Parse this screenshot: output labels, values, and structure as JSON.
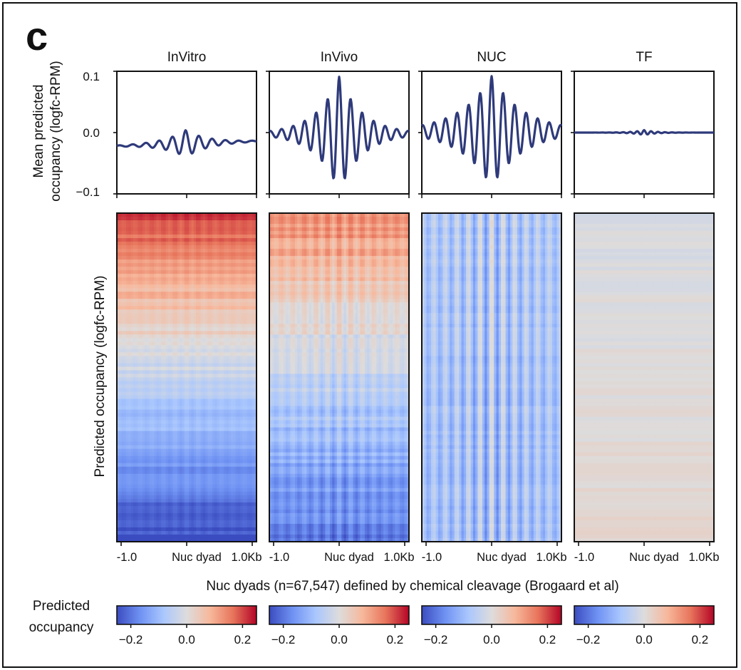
{
  "panel_letter": "c",
  "colors": {
    "line": "#2e3a7a",
    "cmap": [
      "#3b4cc0",
      "#6f92f3",
      "#aac7fd",
      "#dddcdc",
      "#f7b89c",
      "#e7745b",
      "#b40426"
    ]
  },
  "labels": {
    "profile_ylabel_1": "Mean predicted",
    "profile_ylabel_2": "occupancy (logfc-RPM)",
    "heatmap_ylabel": "Predicted occupancy (logfc-RPM)",
    "shared_xlabel": "Nuc dyads (n=67,547) defined by chemical cleavage (Brogaard et al)",
    "colorbar_label_1": "Predicted",
    "colorbar_label_2": "occupancy"
  },
  "chart_data": [
    {
      "type": "line",
      "panel": "InVitro",
      "title": "InVitro",
      "xlabel_ticks": [
        "-1.0",
        "Nuc dyad",
        "1.0Kb"
      ],
      "xlim": [
        -1.0,
        1.0
      ],
      "ylim": [
        -0.1,
        0.1
      ],
      "yticks": [
        "0.1",
        "0.0",
        "−0.1"
      ],
      "profile": {
        "baseline": -0.018,
        "amplitude": 0.022,
        "center_shift": -0.015,
        "decay": 3.2,
        "period": 0.19
      }
    },
    {
      "type": "line",
      "panel": "InVivo",
      "title": "InVivo",
      "xlabel_ticks": [
        "-1.0",
        "Nuc dyad",
        "1.0Kb"
      ],
      "xlim": [
        -1.0,
        1.0
      ],
      "ylim": [
        -0.1,
        0.1
      ],
      "profile": {
        "baseline": -0.002,
        "amplitude": 0.093,
        "center_shift": 0.0,
        "decay": 3.0,
        "period": 0.165
      }
    },
    {
      "type": "line",
      "panel": "NUC",
      "title": "NUC",
      "xlabel_ticks": [
        "-1.0",
        "Nuc dyad",
        "1.0Kb"
      ],
      "xlim": [
        -1.0,
        1.0
      ],
      "ylim": [
        -0.1,
        0.1
      ],
      "profile": {
        "baseline": 0.002,
        "amplitude": 0.09,
        "center_shift": 0.0,
        "decay": 2.2,
        "period": 0.165
      }
    },
    {
      "type": "line",
      "panel": "TF",
      "title": "TF",
      "xlabel_ticks": [
        "-1.0",
        "Nuc dyad",
        "1.0Kb"
      ],
      "xlim": [
        -1.0,
        1.0
      ],
      "ylim": [
        -0.1,
        0.1
      ],
      "profile": {
        "baseline": 0.0,
        "amplitude": 0.004,
        "center_shift": 0.0,
        "decay": 6.0,
        "period": 0.1
      }
    },
    {
      "type": "heatmap",
      "panel": "InVitro heatmap",
      "rows": "Nuc dyads (n=67,547)",
      "value_range": [
        -0.25,
        0.25
      ],
      "pattern": {
        "top_value": 0.22,
        "bottom_value": -0.25,
        "stripe_strength": 0.01
      }
    },
    {
      "type": "heatmap",
      "panel": "InVivo heatmap",
      "value_range": [
        -0.25,
        0.25
      ],
      "pattern": {
        "top_value": 0.15,
        "bottom_value": -0.2,
        "stripe_strength": 0.03
      }
    },
    {
      "type": "heatmap",
      "panel": "NUC heatmap",
      "value_range": [
        -0.25,
        0.25
      ],
      "pattern": {
        "top_value": -0.07,
        "bottom_value": -0.09,
        "stripe_strength": 0.07
      }
    },
    {
      "type": "heatmap",
      "panel": "TF heatmap",
      "value_range": [
        -0.25,
        0.25
      ],
      "pattern": {
        "top_value": -0.01,
        "bottom_value": 0.005,
        "stripe_strength": 0.0
      }
    }
  ],
  "colorbar": {
    "ticks": [
      "−0.2",
      "0.0",
      "0.2"
    ],
    "range": [
      -0.25,
      0.25
    ]
  }
}
